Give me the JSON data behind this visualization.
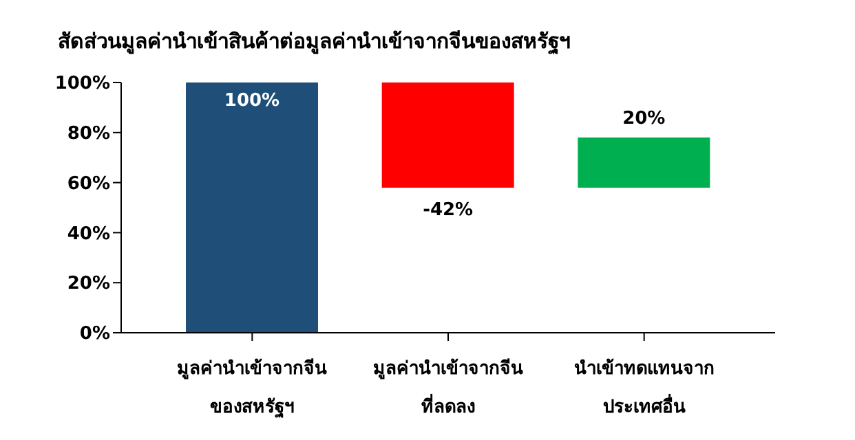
{
  "chart_data": {
    "type": "bar",
    "title": "สัดส่วนมูลค่านำเข้าสินค้าต่อมูลค่านำเข้าจากจีนของสหรัฐฯ",
    "categories": [
      "มูลค่านำเข้าจากจีน\nของสหรัฐฯ",
      "มูลค่านำเข้าจากจีน\nที่ลดลง",
      "นำเข้าทดแทนจาก\nประเทศอื่น"
    ],
    "values": [
      100,
      -42,
      20
    ],
    "base": [
      0,
      100,
      58
    ],
    "colors": [
      "#1f4e79",
      "#ff0000",
      "#00b050"
    ],
    "value_labels": [
      "100%",
      "-42%",
      "20%"
    ],
    "ylim": [
      0,
      100
    ],
    "yticks": [
      {
        "value": 0,
        "label": "0%"
      },
      {
        "value": 20,
        "label": "20%"
      },
      {
        "value": 40,
        "label": "40%"
      },
      {
        "value": 60,
        "label": "60%"
      },
      {
        "value": 80,
        "label": "80%"
      },
      {
        "value": 100,
        "label": "100%"
      }
    ],
    "grid": false
  }
}
